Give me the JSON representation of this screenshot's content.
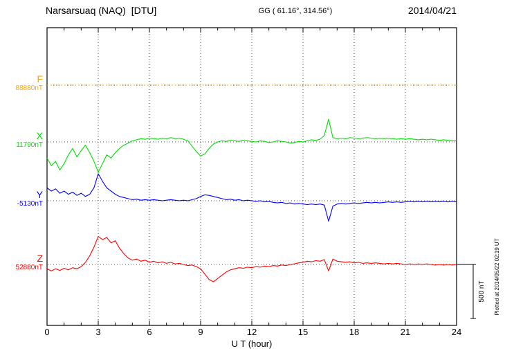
{
  "header": {
    "station": "Narsarsuaq (NAQ)  [DTU]",
    "coords": "GG ( 61.16°, 314.56°)",
    "date": "2014/04/21"
  },
  "axis": {
    "label": "U T (hour)"
  },
  "scale_bar": {
    "label": "500 nT"
  },
  "footer_note": "Plotted at 2014/05/22 02:19 UT",
  "chart_data": {
    "type": "line",
    "title": "Narsarsuaq (NAQ) [DTU] magnetogram 2014/04/21",
    "xlabel": "U T (hour)",
    "x_range": [
      0,
      24
    ],
    "x_ticks": [
      0,
      3,
      6,
      9,
      12,
      15,
      18,
      21,
      24
    ],
    "x_tick_labels": [
      "0",
      "3",
      "6",
      "9",
      "12",
      "15",
      "18",
      "21",
      "24"
    ],
    "grid": "dotted vertical every 3h, dotted horizontal baselines",
    "scale_bar_nT": 500,
    "series": [
      {
        "name": "F",
        "baseline_label": "88880nT",
        "baseline_nT": 88880,
        "color": "#ffa500",
        "style": "dotted",
        "offsets_nT": [
          0,
          0
        ]
      },
      {
        "name": "X",
        "baseline_label": "11790nT",
        "baseline_nT": 11790,
        "color": "#00dd00",
        "style": "solid",
        "offsets_nT": [
          -150,
          -220,
          -180,
          -260,
          -200,
          -120,
          -60,
          -140,
          -80,
          -30,
          -100,
          -180,
          -280,
          -200,
          -120,
          -150,
          -100,
          -60,
          -30,
          -10,
          10,
          20,
          30,
          25,
          35,
          30,
          25,
          35,
          30,
          40,
          30,
          35,
          25,
          10,
          -40,
          -90,
          -130,
          -110,
          -60,
          -20,
          0,
          10,
          5,
          15,
          10,
          5,
          15,
          10,
          5,
          0,
          10,
          5,
          -5,
          0,
          10,
          5,
          0,
          -10,
          -5,
          5,
          0,
          10,
          20,
          15,
          25,
          60,
          210,
          40,
          30,
          35,
          30,
          40,
          35,
          30,
          35,
          40,
          35,
          30,
          35,
          30,
          35,
          30,
          25,
          30,
          25,
          30,
          25,
          20,
          25,
          20,
          25,
          20,
          15,
          20,
          15,
          10,
          10
        ]
      },
      {
        "name": "Y",
        "baseline_label": "-5130nT",
        "baseline_nT": -5130,
        "color": "#0000ff",
        "style": "solid",
        "offsets_nT": [
          120,
          90,
          110,
          70,
          90,
          60,
          80,
          50,
          70,
          40,
          60,
          120,
          250,
          180,
          120,
          90,
          60,
          40,
          30,
          20,
          10,
          15,
          5,
          10,
          5,
          10,
          5,
          0,
          5,
          10,
          5,
          0,
          5,
          0,
          10,
          20,
          40,
          55,
          50,
          40,
          30,
          20,
          10,
          15,
          5,
          10,
          0,
          5,
          0,
          -5,
          0,
          -10,
          -5,
          -15,
          -20,
          -15,
          -25,
          -20,
          -30,
          -25,
          -30,
          -35,
          -30,
          -35,
          -30,
          -40,
          -190,
          -50,
          -30,
          -25,
          -30,
          -25,
          -20,
          -25,
          -20,
          -15,
          -20,
          -15,
          -20,
          -15,
          -10,
          -15,
          -10,
          -15,
          -10,
          -5,
          -10,
          -5,
          -10,
          -5,
          -10,
          -5,
          -10,
          -5,
          -10,
          -5,
          -10
        ]
      },
      {
        "name": "Z",
        "baseline_label": "52880nT",
        "baseline_nT": 52880,
        "color": "#ff0000",
        "style": "solid",
        "offsets_nT": [
          -40,
          -60,
          -40,
          -55,
          -35,
          -50,
          -30,
          -40,
          -20,
          20,
          80,
          160,
          260,
          230,
          250,
          200,
          220,
          150,
          100,
          60,
          40,
          50,
          30,
          40,
          20,
          30,
          15,
          25,
          10,
          20,
          5,
          10,
          0,
          -10,
          -5,
          -20,
          -40,
          -90,
          -140,
          -160,
          -130,
          -100,
          -70,
          -50,
          -40,
          -30,
          -35,
          -25,
          -30,
          -20,
          -25,
          -15,
          -20,
          -10,
          -15,
          -5,
          -10,
          0,
          5,
          15,
          20,
          30,
          25,
          35,
          30,
          45,
          -60,
          50,
          30,
          25,
          20,
          25,
          15,
          20,
          10,
          15,
          10,
          15,
          10,
          5,
          10,
          5,
          10,
          5,
          0,
          5,
          0,
          5,
          0,
          5,
          0,
          -5,
          0,
          -5,
          0,
          -5,
          0
        ]
      }
    ]
  }
}
